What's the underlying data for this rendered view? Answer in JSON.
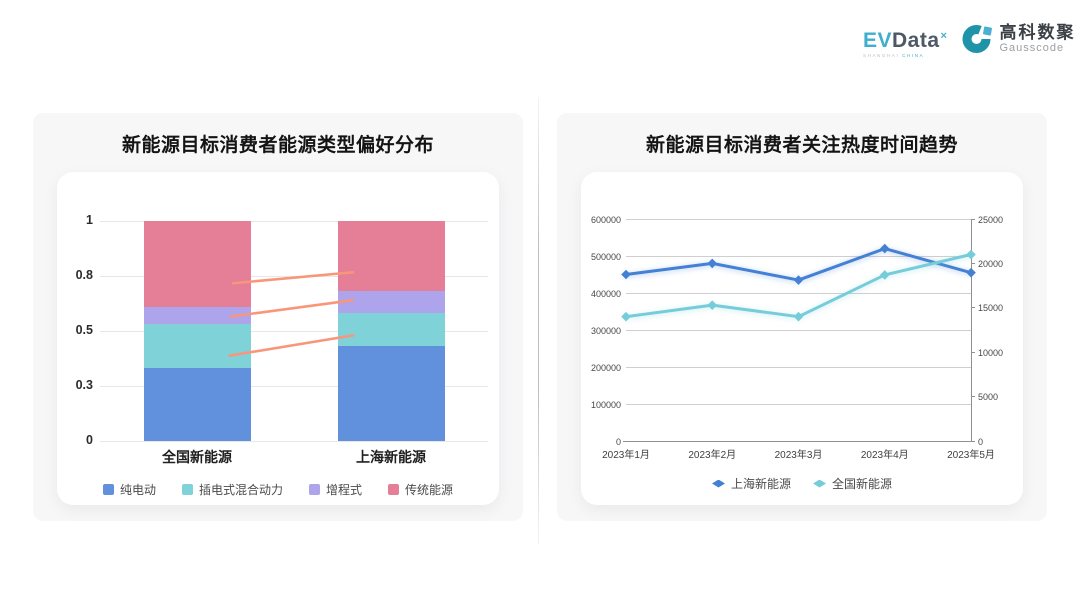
{
  "logos": {
    "evdata": {
      "ev": "EV",
      "data": "Data",
      "sup": "×",
      "sub_left": "SHANGHAI",
      "sub_right": "CHINA"
    },
    "gausscode": {
      "cn": "高科数聚",
      "en": "Gausscode"
    }
  },
  "colors": {
    "card_bg": "#f7f7f8",
    "panel_bg": "#ffffff",
    "bar_grid": "#e7e7e7",
    "line_grid": "#cfcfcf",
    "axis_line": "#909090",
    "connector": "#f9967a"
  },
  "chart_data": [
    {
      "type": "bar",
      "subtype": "stacked-percentage",
      "title": "新能源目标消费者能源类型偏好分布",
      "categories": [
        "全国新能源",
        "上海新能源"
      ],
      "series": [
        {
          "name": "纯电动",
          "color": "#6191dd",
          "values": [
            0.33,
            0.43
          ]
        },
        {
          "name": "插电式混合动力",
          "color": "#7fd2d8",
          "values": [
            0.2,
            0.15
          ]
        },
        {
          "name": "增程式",
          "color": "#ada4ec",
          "values": [
            0.08,
            0.1
          ]
        },
        {
          "name": "传统能源",
          "color": "#e57f97",
          "values": [
            0.39,
            0.32
          ]
        }
      ],
      "ylim": [
        0,
        1
      ],
      "y_ticks": [
        {
          "label": "0",
          "value": 0
        },
        {
          "label": "0.3",
          "value": 0.25
        },
        {
          "label": "0.5",
          "value": 0.5
        },
        {
          "label": "0.8",
          "value": 0.75
        },
        {
          "label": "1",
          "value": 1
        }
      ],
      "grid": true,
      "legend_position": "bottom",
      "connector_lines": {
        "color": "#f9967a",
        "segments": [
          {
            "x1": 0.343,
            "y1": 0.717,
            "x2": 0.652,
            "y2": 0.767
          },
          {
            "x1": 0.337,
            "y1": 0.566,
            "x2": 0.652,
            "y2": 0.64
          },
          {
            "x1": 0.334,
            "y1": 0.388,
            "x2": 0.652,
            "y2": 0.48
          }
        ]
      }
    },
    {
      "type": "line",
      "title": "新能源目标消费者关注热度时间趋势",
      "x": [
        "2023年1月",
        "2023年2月",
        "2023年3月",
        "2023年4月",
        "2023年5月"
      ],
      "series": [
        {
          "name": "上海新能源",
          "color": "#4480d4",
          "axis": "left",
          "values": [
            450000,
            480000,
            435000,
            520000,
            455000
          ]
        },
        {
          "name": "全国新能源",
          "color": "#76ccd9",
          "axis": "right",
          "values": [
            14000,
            15300,
            14000,
            18700,
            21000
          ]
        }
      ],
      "left_axis": {
        "min": 0,
        "max": 600000,
        "step": 100000,
        "labels": [
          "0",
          "100000",
          "200000",
          "300000",
          "400000",
          "500000",
          "600000"
        ]
      },
      "right_axis": {
        "min": 0,
        "max": 25000,
        "step": 5000,
        "labels": [
          "0",
          "5000",
          "10000",
          "15000",
          "20000",
          "25000"
        ]
      },
      "grid": true,
      "legend_position": "bottom"
    }
  ]
}
